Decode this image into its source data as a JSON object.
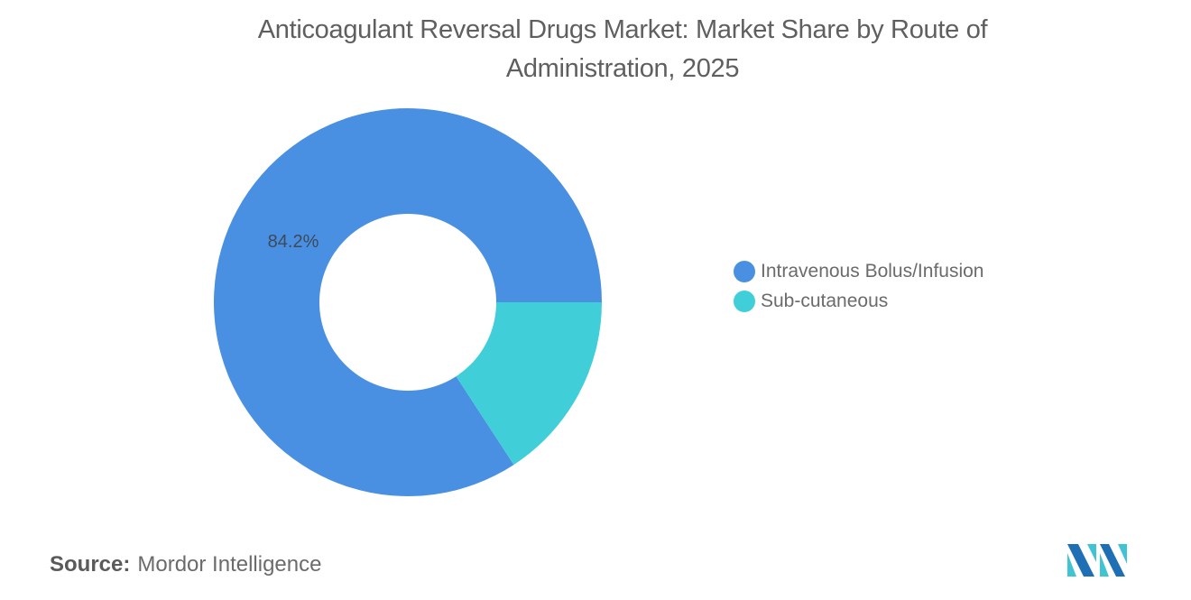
{
  "title": {
    "line1": "Anticoagulant Reversal Drugs Market: Market Share by Route of",
    "line2": "Administration, 2025"
  },
  "chart_data": {
    "type": "pie",
    "subtype": "donut",
    "title": "Anticoagulant Reversal Drugs Market: Market Share by Route of Administration, 2025",
    "categories": [
      "Intravenous Bolus/Infusion",
      "Sub-cutaneous"
    ],
    "values": [
      84.2,
      15.8
    ],
    "colors": [
      "#4a90e2",
      "#40cfd9"
    ],
    "data_labels": [
      "84.2%",
      ""
    ],
    "legend_position": "right"
  },
  "labels": {
    "slice0": "84.2%"
  },
  "legend": {
    "items": [
      {
        "label": "Intravenous Bolus/Infusion",
        "color": "#4a90e2"
      },
      {
        "label": "Sub-cutaneous",
        "color": "#40cfd9"
      }
    ]
  },
  "source": {
    "prefix": "Source:",
    "name": "Mordor Intelligence"
  },
  "logo": {
    "icon": "mordor-intelligence-logo"
  }
}
